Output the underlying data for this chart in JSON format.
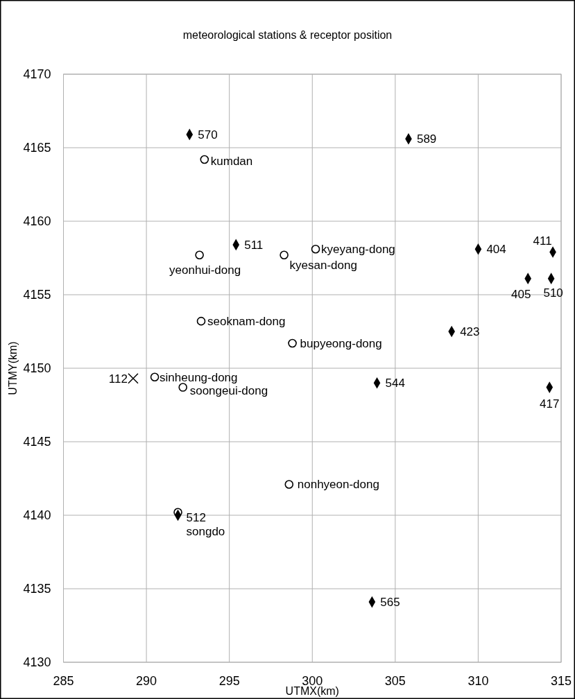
{
  "chart_data": {
    "type": "scatter",
    "title": "meteorological stations & receptor position",
    "xlabel": "UTMX(km)",
    "ylabel": "UTMY(km)",
    "xlim": [
      285,
      315
    ],
    "ylim": [
      4130,
      4170
    ],
    "xticks": [
      285,
      290,
      295,
      300,
      305,
      310,
      315
    ],
    "yticks": [
      4130,
      4135,
      4140,
      4145,
      4150,
      4155,
      4160,
      4165,
      4170
    ],
    "grid": true,
    "series": [
      {
        "color": "#000000",
        "marker": "diamond",
        "x": [
          292.6,
          305.8,
          295.4,
          310.0,
          314.5,
          313.0,
          314.4,
          308.4,
          303.9,
          314.3,
          291.9,
          303.6
        ],
        "values": [
          4165.9,
          4165.6,
          4158.4,
          4158.1,
          4157.9,
          4156.1,
          4156.1,
          4152.5,
          4149.0,
          4148.7,
          4140.0,
          4134.1
        ]
      },
      {
        "color": "#000000",
        "marker": "circle",
        "x": [
          293.5,
          293.2,
          298.3,
          300.2,
          293.3,
          298.8,
          290.5,
          292.2,
          298.6,
          291.9
        ],
        "values": [
          4164.2,
          4157.7,
          4157.7,
          4158.1,
          4153.2,
          4151.7,
          4149.4,
          4148.7,
          4142.1,
          4140.2
        ]
      },
      {
        "color": "#000000",
        "marker": "cross",
        "x": [
          289.2
        ],
        "values": [
          4149.3
        ]
      }
    ],
    "annotations": [
      {
        "text": "570",
        "x": 292.6,
        "y": 4165.9
      },
      {
        "text": "589",
        "x": 305.8,
        "y": 4165.6
      },
      {
        "text": "511",
        "x": 295.4,
        "y": 4158.4
      },
      {
        "text": "404",
        "x": 310.0,
        "y": 4158.1
      },
      {
        "text": "411",
        "x": 314.5,
        "y": 4157.9
      },
      {
        "text": "405",
        "x": 313.0,
        "y": 4156.1
      },
      {
        "text": "510",
        "x": 314.4,
        "y": 4156.1
      },
      {
        "text": "423",
        "x": 308.4,
        "y": 4152.5
      },
      {
        "text": "544",
        "x": 303.9,
        "y": 4149.0
      },
      {
        "text": "417",
        "x": 314.3,
        "y": 4148.7
      },
      {
        "text": "512",
        "x": 291.9,
        "y": 4140.0
      },
      {
        "text": "565",
        "x": 303.6,
        "y": 4134.1
      },
      {
        "text": "kumdan",
        "x": 293.5,
        "y": 4164.2
      },
      {
        "text": "yeonhui-dong",
        "x": 293.2,
        "y": 4157.7
      },
      {
        "text": "kyesan-dong",
        "x": 298.3,
        "y": 4157.7
      },
      {
        "text": "kyeyang-dong",
        "x": 300.2,
        "y": 4158.1
      },
      {
        "text": "seoknam-dong",
        "x": 293.3,
        "y": 4153.2
      },
      {
        "text": "bupyeong-dong",
        "x": 298.8,
        "y": 4151.7
      },
      {
        "text": "sinheung-dong",
        "x": 290.5,
        "y": 4149.4
      },
      {
        "text": "soongeui-dong",
        "x": 292.2,
        "y": 4148.7
      },
      {
        "text": "nonhyeon-dong",
        "x": 298.6,
        "y": 4142.1
      },
      {
        "text": "songdo",
        "x": 291.9,
        "y": 4140.2
      },
      {
        "text": "112",
        "x": 289.2,
        "y": 4149.3
      }
    ]
  }
}
